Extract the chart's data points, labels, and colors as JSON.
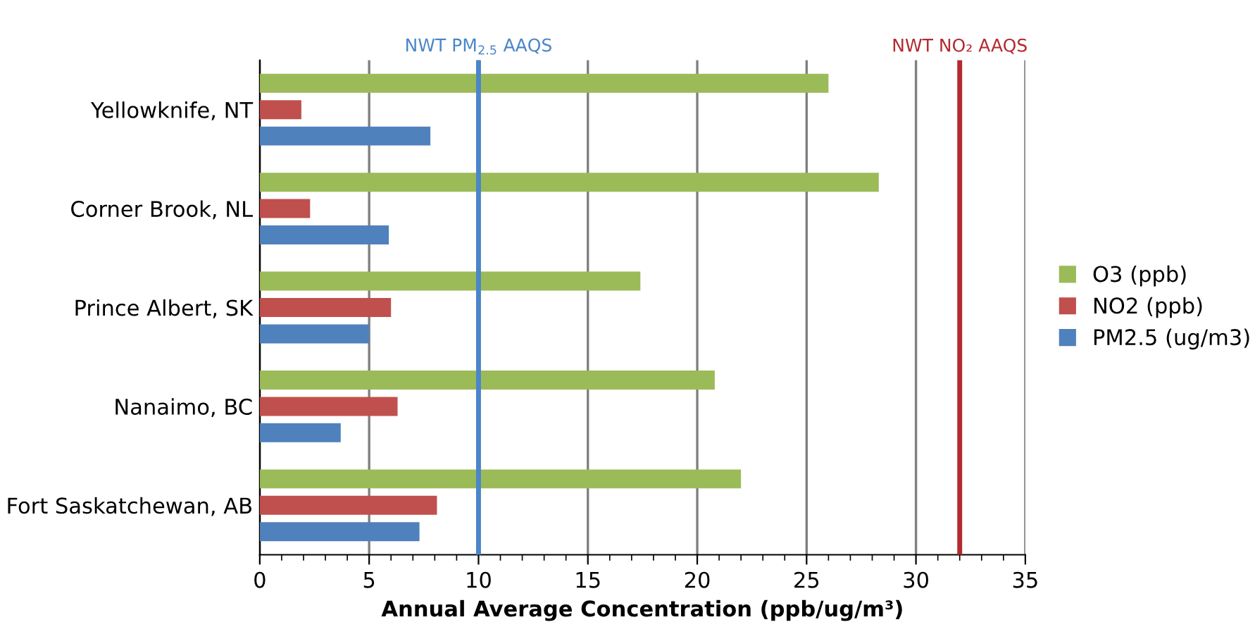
{
  "chart_data": {
    "type": "bar",
    "orientation": "horizontal",
    "xlabel": "Annual Average Concentration (ppb/ug/m³)",
    "categories": [
      "Yellowknife, NT",
      "Corner Brook, NL",
      "Prince Albert, SK",
      "Nanaimo, BC",
      "Fort Saskatchewan, AB"
    ],
    "series": [
      {
        "name": "O3 (ppb)",
        "color": "#9bbb59",
        "values": [
          26.0,
          28.3,
          17.4,
          20.8,
          22.0
        ]
      },
      {
        "name": "NO2 (ppb)",
        "color": "#c0504d",
        "values": [
          1.9,
          2.3,
          6.0,
          6.3,
          8.1
        ]
      },
      {
        "name": "PM2.5 (ug/m3)",
        "color": "#4f81bd",
        "values": [
          7.8,
          5.9,
          5.0,
          3.7,
          7.3
        ]
      }
    ],
    "xlim": [
      0,
      35
    ],
    "xticks": [
      0,
      5,
      10,
      15,
      20,
      25,
      30,
      35
    ],
    "grid": "x",
    "legend": "right",
    "ref_lines": [
      {
        "axis": "x",
        "value": 10,
        "label": "NWT PM$_{2.5}$ AAQS",
        "color": "#4a86c8"
      },
      {
        "axis": "x",
        "value": 32,
        "label": "NWT NO₂ AAQS",
        "color": "#b22a2f"
      }
    ]
  }
}
